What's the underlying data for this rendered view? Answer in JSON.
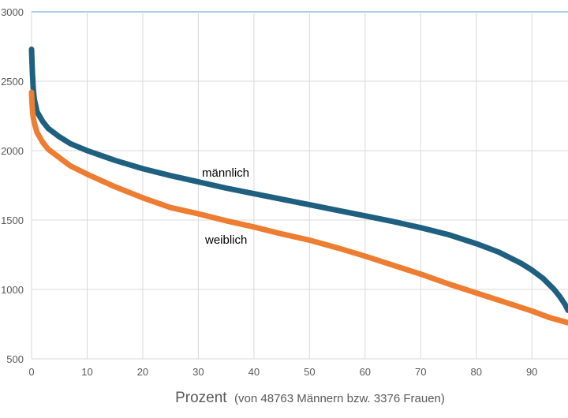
{
  "chart_data": {
    "type": "line",
    "title": "",
    "xlabel": "Prozent",
    "xlabel_note": "(von 48763 Männern bzw. 3376 Frauen)",
    "ylabel": "",
    "xlim": [
      0,
      96.5
    ],
    "ylim": [
      500,
      3000
    ],
    "x_ticks": [
      "0",
      "10",
      "20",
      "30",
      "40",
      "50",
      "60",
      "70",
      "80",
      "90"
    ],
    "y_ticks": [
      "500",
      "1000",
      "1500",
      "2000",
      "2500",
      "3000"
    ],
    "grid": true,
    "series": [
      {
        "name": "männlich",
        "color": "#1F5F7F",
        "x": [
          0,
          0.05,
          0.15,
          0.3,
          0.5,
          1,
          2,
          3,
          5,
          7,
          10,
          15,
          20,
          25,
          30,
          35,
          40,
          45,
          50,
          55,
          60,
          65,
          70,
          75,
          80,
          84,
          88,
          90,
          92,
          94,
          95,
          96,
          96.5
        ],
        "y": [
          2730,
          2660,
          2560,
          2450,
          2370,
          2280,
          2210,
          2160,
          2100,
          2050,
          2000,
          1930,
          1870,
          1820,
          1775,
          1730,
          1690,
          1650,
          1610,
          1570,
          1530,
          1490,
          1445,
          1395,
          1330,
          1270,
          1190,
          1140,
          1080,
          1000,
          950,
          890,
          850
        ]
      },
      {
        "name": "weiblich",
        "color": "#ED7D31",
        "x": [
          0,
          0.05,
          0.15,
          0.3,
          0.5,
          1,
          2,
          3,
          5,
          7,
          10,
          15,
          20,
          25,
          30,
          35,
          40,
          45,
          50,
          55,
          60,
          65,
          70,
          75,
          80,
          85,
          90,
          93,
          96.5
        ],
        "y": [
          2420,
          2360,
          2300,
          2240,
          2200,
          2130,
          2060,
          2010,
          1950,
          1890,
          1830,
          1740,
          1660,
          1590,
          1545,
          1495,
          1450,
          1400,
          1355,
          1300,
          1240,
          1175,
          1110,
          1040,
          975,
          910,
          845,
          800,
          760
        ]
      }
    ]
  }
}
